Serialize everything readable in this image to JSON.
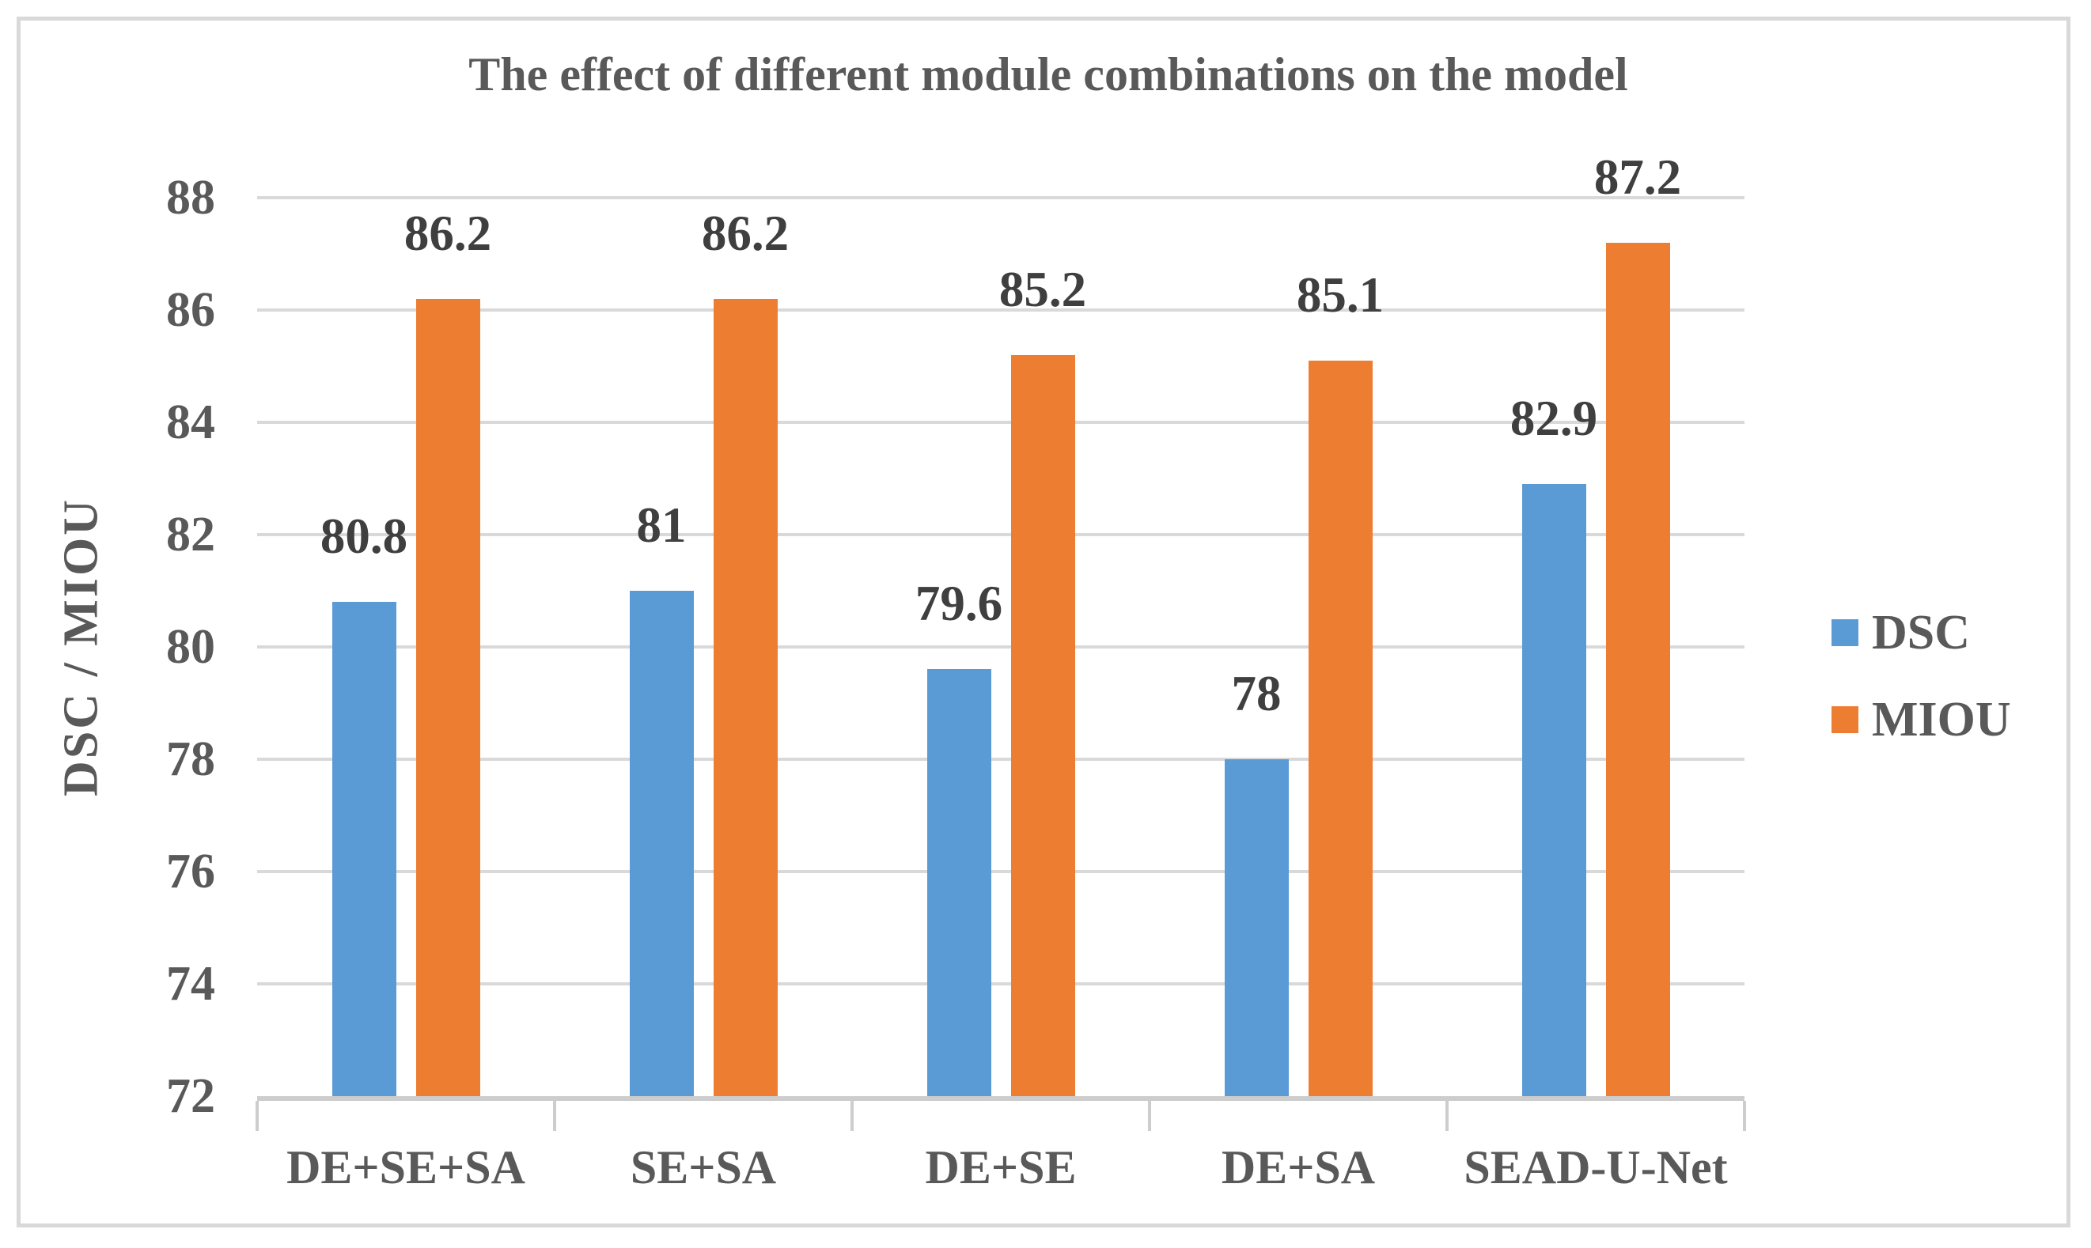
{
  "title": "The effect of different module combinations on the model",
  "chart_data": {
    "type": "bar",
    "categories": [
      "DE+SE+SA",
      "SE+SA",
      "DE+SE",
      "DE+SA",
      "SEAD-U-Net"
    ],
    "series": [
      {
        "name": "DSC",
        "color": "#5B9BD5",
        "values": [
          80.8,
          81,
          79.6,
          78,
          82.9
        ]
      },
      {
        "name": "MIOU",
        "color": "#ED7D31",
        "values": [
          86.2,
          86.2,
          85.2,
          85.1,
          87.2
        ]
      }
    ],
    "title": "The effect of different module combinations on the model",
    "xlabel": "",
    "ylabel": "DSC / MIOU",
    "ylim": [
      72,
      88
    ],
    "ytick_step": 2,
    "grid": true,
    "data_labels": true,
    "legend_position": "right"
  },
  "colors": {
    "grid": "#D9D9D9",
    "axis": "#CDCDCD",
    "border": "#D9D9D9",
    "text": "#595959",
    "data_label": "#3F3F3F",
    "background": "#FFFFFF"
  }
}
